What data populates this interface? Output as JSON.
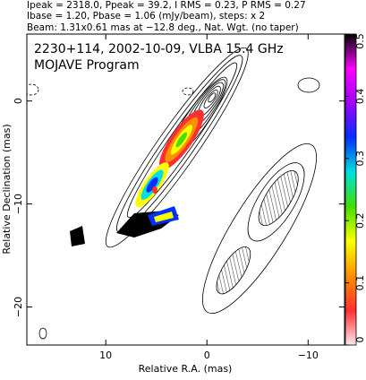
{
  "chart_data": {
    "type": "image",
    "header": [
      "Ipeak = 2318.0, Ppeak = 39.2, I RMS = 0.23, P RMS = 0.27",
      "Ibase = 1.20, Pbase = 1.06 (mJy/beam), steps: x 2",
      "Beam: 1.31x0.61 mas at −12.8 deg., Nat. Wgt. (no taper)"
    ],
    "title": "2230+114, 2002-10-09, VLBA 15.4 GHz",
    "subtitle": "MOJAVE Program",
    "xlabel": "Relative R.A. (mas)",
    "ylabel": "Relative Declination (mas)",
    "xlim": [
      17.8,
      -13.6
    ],
    "xticks": [
      10,
      0,
      {
        "value": -10,
        "label": "−10"
      }
    ],
    "ylim": [
      -23.7,
      6.5
    ],
    "yticks": [
      0,
      {
        "value": -10,
        "label": "−10"
      },
      {
        "value": -20,
        "label": "−20"
      }
    ],
    "clim": [
      0,
      0.5
    ],
    "cticks": [
      0,
      0.1,
      0.2,
      0.3,
      0.4,
      0.5
    ],
    "colormap": [
      "#ffe8ec",
      "#ff3030",
      "#ff9000",
      "#ffff00",
      "#40e000",
      "#00e0e0",
      "#0030ff",
      "#a000ff",
      "#ff00ff",
      "#000000"
    ]
  }
}
